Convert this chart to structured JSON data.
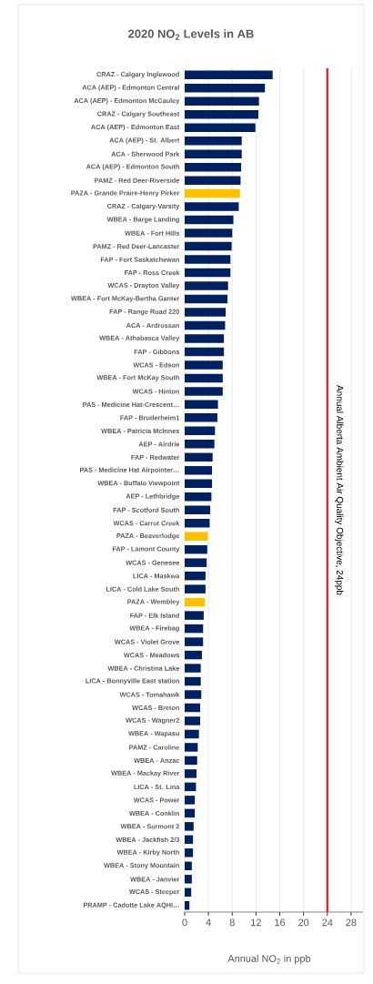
{
  "chart_data": {
    "type": "bar",
    "orientation": "horizontal",
    "title": "2020 NO$_{2}$ Levels in AB",
    "xlabel": "Annual NO$_{2}$ in ppb",
    "categories": [
      "CRAZ - Calgary Inglewood",
      "ACA (AEP) - Edmonton Central",
      "ACA (AEP) - Edmonton McCauley",
      "CRAZ - Calgary Southeast",
      "ACA (AEP) - Edmonton East",
      "ACA (AEP) - St. Albert",
      "ACA - Sherwood Park",
      "ACA (AEP) - Edmonton South",
      "PAMZ - Red Deer-Riverside",
      "PAZA - Grande Praire-Henry Pirker",
      "CRAZ - Calgary-Varsity",
      "WBEA - Barge Landing",
      "WBEA - Fort Hills",
      "PAMZ - Red Deer-Lancaster",
      "FAP - Fort Saskatchewan",
      "FAP - Ross Creek",
      "WCAS - Drayton Valley",
      "WBEA - Fort McKay-Bertha Ganter",
      "FAP - Range Road 220",
      "ACA - Ardrossan",
      "WBEA - Athabasca Valley",
      "FAP - Gibbons",
      "WCAS - Edson",
      "WBEA - Fort McKay South",
      "WCAS - Hinton",
      "PAS - Medicine Hat-Crescent…",
      "FAP - Bruderheim1",
      "WBEA - Patricia McInnes",
      "AEP - Airdrie",
      "FAP - Redwater",
      "PAS - Medicine Hat Airpointer…",
      "WBEA - Buffalo Viewpoint",
      "AEP - Lethbridge",
      "FAP - Scotford South",
      "WCAS - Carrot Creek",
      "PAZA - Beaverlodge",
      "FAP - Lamont County",
      "WCAS - Genesee",
      "LICA - Maskwa",
      "LICA - Cold Lake South",
      "PAZA - Wembley",
      "FAP - Elk Island",
      "WBEA - Firebag",
      "WCAS - Violet Grove",
      "WCAS - Meadows",
      "WBEA - Christina Lake",
      "LICA - Bonnyville East station",
      "WCAS - Tomahawk",
      "WCAS - Breton",
      "WCAS - Wagner2",
      "WBEA - Wapasu",
      "PAMZ - Caroline",
      "WBEA - Anzac",
      "WBEA - Mackay River",
      "LICA - St. Lina",
      "WCAS - Power",
      "WBEA - Conklin",
      "WBEA - Surmont 2",
      "WBEA - Jackfish 2/3",
      "WBEA - Kirby North",
      "WBEA - Stony Mountain",
      "WBEA - Janvier",
      "WCAS - Steeper",
      "PRAMP - Cadotte Lake AQHI…"
    ],
    "values": [
      14.8,
      13.5,
      12.5,
      12.4,
      11.9,
      9.6,
      9.6,
      9.5,
      9.4,
      9.3,
      9.1,
      8.2,
      8.0,
      7.9,
      7.7,
      7.7,
      7.3,
      7.2,
      6.9,
      6.8,
      6.6,
      6.6,
      6.4,
      6.4,
      6.4,
      5.6,
      5.5,
      5.1,
      5.0,
      4.7,
      4.6,
      4.6,
      4.5,
      4.3,
      4.2,
      3.9,
      3.8,
      3.7,
      3.5,
      3.5,
      3.4,
      3.2,
      3.1,
      3.1,
      2.9,
      2.7,
      2.7,
      2.8,
      2.6,
      2.6,
      2.4,
      2.2,
      2.1,
      2.0,
      1.9,
      1.7,
      1.7,
      1.5,
      1.4,
      1.4,
      1.2,
      1.2,
      1.1,
      0.8
    ],
    "colors": [
      "#002060",
      "#002060",
      "#002060",
      "#002060",
      "#002060",
      "#002060",
      "#002060",
      "#002060",
      "#002060",
      "#ffc000",
      "#002060",
      "#002060",
      "#002060",
      "#002060",
      "#002060",
      "#002060",
      "#002060",
      "#002060",
      "#002060",
      "#002060",
      "#002060",
      "#002060",
      "#002060",
      "#002060",
      "#002060",
      "#002060",
      "#002060",
      "#002060",
      "#002060",
      "#002060",
      "#002060",
      "#002060",
      "#002060",
      "#002060",
      "#002060",
      "#ffc000",
      "#002060",
      "#002060",
      "#002060",
      "#002060",
      "#ffc000",
      "#002060",
      "#002060",
      "#002060",
      "#002060",
      "#002060",
      "#002060",
      "#002060",
      "#002060",
      "#002060",
      "#002060",
      "#002060",
      "#002060",
      "#002060",
      "#002060",
      "#002060",
      "#002060",
      "#002060",
      "#002060",
      "#002060",
      "#002060",
      "#002060",
      "#002060",
      "#002060"
    ],
    "xlim": [
      0,
      30
    ],
    "xticks": [
      0,
      4,
      8,
      12,
      16,
      20,
      24,
      28
    ],
    "grid": "x",
    "ref_lines": [
      {
        "axis": "x",
        "value": 24,
        "label": "Annual Alberta Ambient Air Quality Objective, 24ppb",
        "color": "#ff0000",
        "line_style": "solid"
      }
    ]
  }
}
